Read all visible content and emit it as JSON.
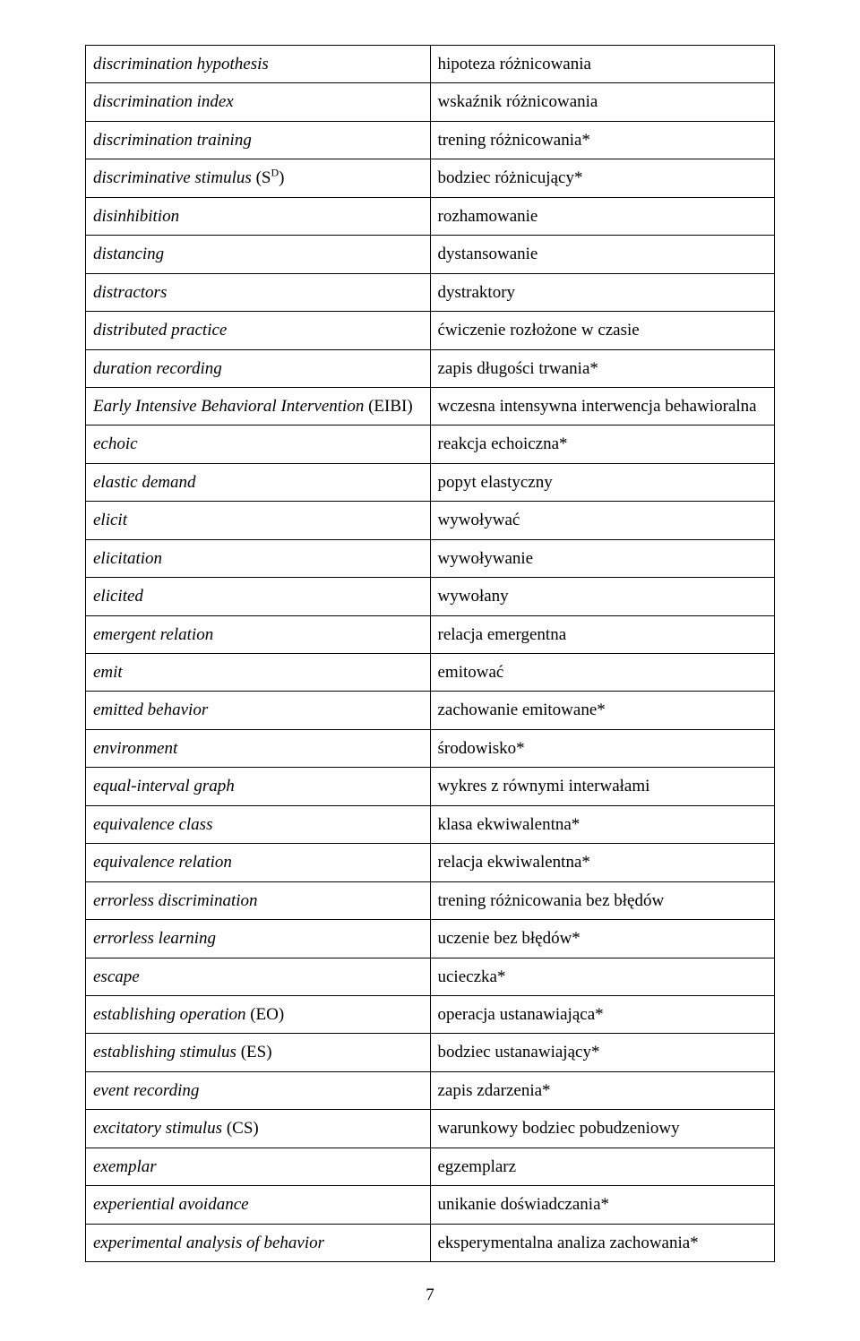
{
  "glossary": {
    "columns": [
      "english",
      "polish"
    ],
    "col_widths_pct": [
      50,
      50
    ],
    "border_color": "#000000",
    "font_family": "Times New Roman",
    "font_size_pt": 14,
    "left_col_style": "italic",
    "rows": [
      {
        "en": "discrimination hypothesis",
        "pl": "hipoteza różnicowania"
      },
      {
        "en": "discrimination index",
        "pl": "wskaźnik różnicowania"
      },
      {
        "en": "discrimination training",
        "pl": "trening różnicowania*"
      },
      {
        "en_html": "<span>discriminative stimulus </span><span class=\"roman\">(S<sup>D</sup>)</span>",
        "pl": "bodziec różnicujący*"
      },
      {
        "en": "disinhibition",
        "pl": "rozhamowanie"
      },
      {
        "en": "distancing",
        "pl": "dystansowanie"
      },
      {
        "en": "distractors",
        "pl": "dystraktory"
      },
      {
        "en": "distributed practice",
        "pl": "ćwiczenie rozłożone w czasie"
      },
      {
        "en": "duration recording",
        "pl": "zapis długości trwania*"
      },
      {
        "en_html": "<span>Early Intensive Behavioral Intervention </span><span class=\"roman\">(EIBI)</span>",
        "pl": "wczesna intensywna interwencja behawioralna"
      },
      {
        "en": "echoic",
        "pl": "reakcja echoiczna*"
      },
      {
        "en": "elastic demand",
        "pl": "popyt elastyczny"
      },
      {
        "en": "elicit",
        "pl": "wywoływać"
      },
      {
        "en": "elicitation",
        "pl": "wywoływanie"
      },
      {
        "en": "elicited",
        "pl": "wywołany"
      },
      {
        "en": "emergent relation",
        "pl": "relacja emergentna"
      },
      {
        "en": "emit",
        "pl": "emitować"
      },
      {
        "en": "emitted behavior",
        "pl": "zachowanie emitowane*"
      },
      {
        "en": "environment",
        "pl": "środowisko*"
      },
      {
        "en": "equal-interval graph",
        "pl": "wykres z równymi interwałami"
      },
      {
        "en": "equivalence class",
        "pl": "klasa ekwiwalentna*"
      },
      {
        "en": "equivalence relation",
        "pl": "relacja ekwiwalentna*"
      },
      {
        "en": "errorless discrimination",
        "pl": "trening różnicowania bez błędów"
      },
      {
        "en": "errorless learning",
        "pl": "uczenie bez błędów*"
      },
      {
        "en": "escape",
        "pl": "ucieczka*"
      },
      {
        "en_html": "<span>establishing operation </span><span class=\"roman\">(EO)</span>",
        "pl": "operacja ustanawiająca*"
      },
      {
        "en_html": "<span>establishing stimulus </span><span class=\"roman\">(ES)</span>",
        "pl": "bodziec ustanawiający*"
      },
      {
        "en": "event recording",
        "pl": "zapis zdarzenia*"
      },
      {
        "en_html": "<span>excitatory stimulus </span><span class=\"roman\">(CS)</span>",
        "pl": "warunkowy bodziec pobudzeniowy"
      },
      {
        "en": "exemplar",
        "pl": "egzemplarz"
      },
      {
        "en": "experiential avoidance",
        "pl": "unikanie doświadczania*"
      },
      {
        "en": "experimental analysis of behavior",
        "pl": "eksperymentalna analiza zachowania*"
      }
    ]
  },
  "page_number": "7"
}
